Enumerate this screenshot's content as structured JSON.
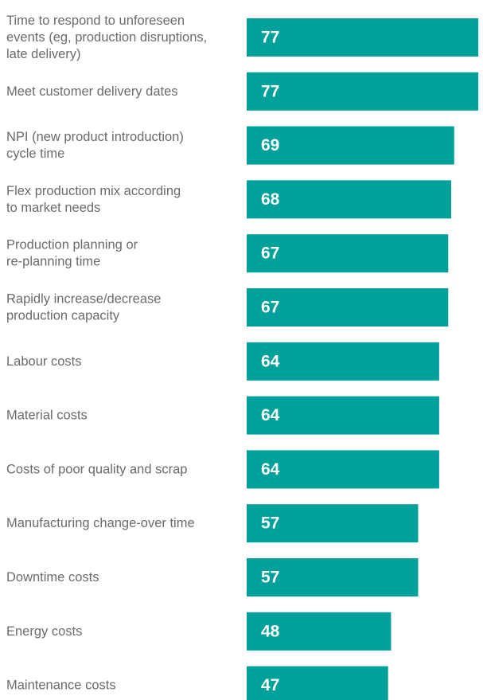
{
  "chart_data": {
    "type": "bar",
    "orientation": "horizontal",
    "categories": [
      [
        "Time to respond to unforeseen",
        "events (eg, production disruptions,",
        "late delivery)"
      ],
      [
        "Meet customer delivery dates"
      ],
      [
        "NPI (new product introduction)",
        "cycle time"
      ],
      [
        "Flex production mix according",
        "to market needs"
      ],
      [
        "Production planning or",
        "re-planning time"
      ],
      [
        "Rapidly increase/decrease",
        "production capacity"
      ],
      [
        "Labour costs"
      ],
      [
        "Material costs"
      ],
      [
        "Costs of poor quality and scrap"
      ],
      [
        "Manufacturing change-over time"
      ],
      [
        "Downtime costs"
      ],
      [
        "Energy costs"
      ],
      [
        "Maintenance costs"
      ]
    ],
    "values": [
      77,
      77,
      69,
      68,
      67,
      67,
      64,
      64,
      64,
      57,
      57,
      48,
      47
    ],
    "colors": {
      "bar": "#00a19a",
      "label": "#6b6b6b",
      "value_text": "#ffffff"
    },
    "grid": false,
    "legend": "none"
  }
}
